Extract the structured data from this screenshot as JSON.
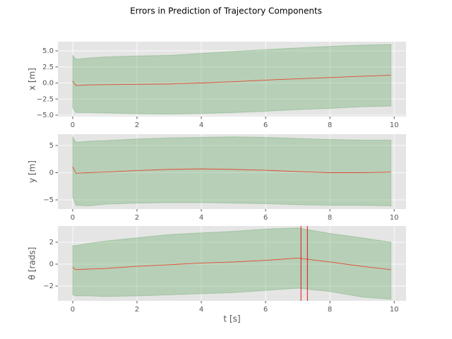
{
  "title": "Errors in Prediction of Trajectory Components",
  "chart_data": [
    {
      "type": "line",
      "ylabel": "x [m]",
      "x": [
        0,
        0.1,
        0.5,
        1,
        2,
        3,
        4,
        5,
        6,
        7,
        8,
        9,
        9.9
      ],
      "series": [
        {
          "color": "#e24a33",
          "values": [
            0.3,
            -0.4,
            -0.3,
            -0.25,
            -0.2,
            -0.15,
            0,
            0.2,
            0.45,
            0.65,
            0.85,
            1.05,
            1.2
          ]
        }
      ],
      "band": {
        "color": "#4c9a4c",
        "upper": [
          4.3,
          3.7,
          3.9,
          4.05,
          4.2,
          4.3,
          4.6,
          4.9,
          5.2,
          5.45,
          5.7,
          5.9,
          6.0
        ],
        "lower": [
          -3.9,
          -4.6,
          -4.6,
          -4.65,
          -4.8,
          -4.85,
          -4.75,
          -4.6,
          -4.4,
          -4.15,
          -3.95,
          -3.7,
          -3.6
        ]
      },
      "xlim": [
        -0.46,
        10.37
      ],
      "xticks": [
        0,
        2,
        4,
        6,
        8,
        10
      ],
      "ylim": [
        -5.22,
        6.43
      ],
      "yticks": [
        {
          "value": -5,
          "label": "−5.0"
        },
        {
          "value": -2.5,
          "label": "−2.5"
        },
        {
          "value": 0,
          "label": "0.0"
        },
        {
          "value": 2.5,
          "label": "2.5"
        },
        {
          "value": 5,
          "label": "5.0"
        }
      ],
      "grid": true
    },
    {
      "type": "line",
      "ylabel": "y [m]",
      "x": [
        0,
        0.1,
        0.5,
        1,
        2,
        3,
        4,
        5,
        6,
        7,
        8,
        9,
        9.9
      ],
      "series": [
        {
          "color": "#e24a33",
          "values": [
            1.1,
            -0.1,
            0,
            0.1,
            0.4,
            0.6,
            0.7,
            0.6,
            0.45,
            0.2,
            0,
            0,
            0.1
          ]
        }
      ],
      "band": {
        "color": "#4c9a4c",
        "upper": [
          6.6,
          5.6,
          5.8,
          5.9,
          6.2,
          6.4,
          6.5,
          6.6,
          6.5,
          6.3,
          6.1,
          6.0,
          6.0
        ],
        "lower": [
          -4.5,
          -6.0,
          -6.1,
          -5.8,
          -5.6,
          -5.5,
          -5.5,
          -5.6,
          -5.7,
          -5.9,
          -6.0,
          -6.0,
          -6.1
        ]
      },
      "xlim": [
        -0.46,
        10.37
      ],
      "xticks": [
        0,
        2,
        4,
        6,
        8,
        10
      ],
      "ylim": [
        -6.69,
        7.08
      ],
      "yticks": [
        {
          "value": -5,
          "label": "−5"
        },
        0,
        5
      ],
      "grid": true
    },
    {
      "type": "line",
      "ylabel": "θ [rads]",
      "xlabel": "t [s]",
      "x": [
        0,
        0.1,
        0.5,
        1,
        2,
        3,
        4,
        5,
        6,
        7,
        8,
        9,
        9.9
      ],
      "series": [
        {
          "color": "#e24a33",
          "values": [
            -0.3,
            -0.5,
            -0.45,
            -0.4,
            -0.2,
            -0.05,
            0.1,
            0.2,
            0.35,
            0.55,
            0.2,
            -0.2,
            -0.5
          ]
        }
      ],
      "band": {
        "color": "#4c9a4c",
        "upper": [
          1.7,
          1.7,
          1.9,
          2.1,
          2.4,
          2.7,
          2.85,
          3.0,
          3.2,
          3.3,
          2.8,
          2.4,
          2.0
        ],
        "lower": [
          -2.8,
          -2.9,
          -2.9,
          -2.95,
          -2.9,
          -2.8,
          -2.7,
          -2.6,
          -2.4,
          -2.2,
          -2.5,
          -3.0,
          -3.2
        ]
      },
      "vlines": {
        "color": "#e00000",
        "x": [
          7.1,
          7.3
        ]
      },
      "xlim": [
        -0.46,
        10.37
      ],
      "xticks": [
        0,
        2,
        4,
        6,
        8,
        10
      ],
      "ylim": [
        -3.35,
        3.48
      ],
      "yticks": [
        {
          "value": -2,
          "label": "−2"
        },
        0,
        2
      ],
      "grid": true
    }
  ]
}
